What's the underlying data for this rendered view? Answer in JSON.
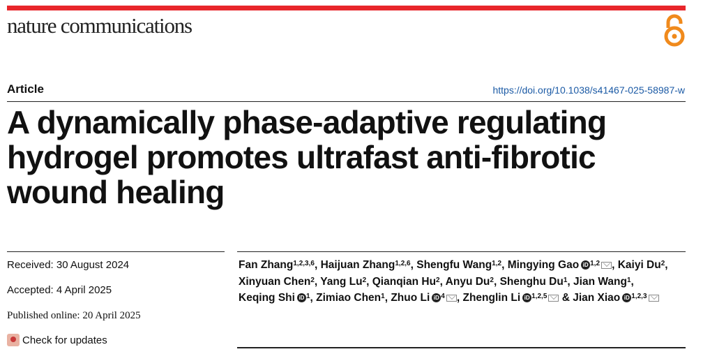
{
  "journal": {
    "name": "nature communications",
    "open_access_icon": "open-access-lock-icon"
  },
  "colors": {
    "accent": "#e8262b",
    "link": "#1b5aa5",
    "oa": "#f08a1c"
  },
  "article": {
    "type_label": "Article",
    "doi": "https://doi.org/10.1038/s41467-025-58987-w",
    "title_lines": [
      "A dynamically phase-adaptive regulating",
      "hydrogel promotes ultrafast anti-fibrotic",
      "wound healing"
    ]
  },
  "dates": {
    "received": "Received: 30 August 2024",
    "accepted": "Accepted: 4 April 2025",
    "published": "Published online: 20 April 2025"
  },
  "check_updates": {
    "label": "Check for updates",
    "icon": "check-for-updates-icon"
  },
  "authors": [
    {
      "name": "Fan Zhang",
      "aff": "1,2,3,6",
      "orcid": false,
      "email": false
    },
    {
      "name": "Haijuan Zhang",
      "aff": "1,2,6",
      "orcid": false,
      "email": false
    },
    {
      "name": "Shengfu Wang",
      "aff": "1,2",
      "orcid": false,
      "email": false
    },
    {
      "name": "Mingying Gao",
      "aff": "1,2",
      "orcid": true,
      "email": true
    },
    {
      "name": "Kaiyi Du",
      "aff": "2",
      "orcid": false,
      "email": false
    },
    {
      "name": "Xinyuan Chen",
      "aff": "2",
      "orcid": false,
      "email": false
    },
    {
      "name": "Yang Lu",
      "aff": "2",
      "orcid": false,
      "email": false
    },
    {
      "name": "Qianqian Hu",
      "aff": "2",
      "orcid": false,
      "email": false
    },
    {
      "name": "Anyu Du",
      "aff": "2",
      "orcid": false,
      "email": false
    },
    {
      "name": "Shenghu Du",
      "aff": "1",
      "orcid": false,
      "email": false
    },
    {
      "name": "Jian Wang",
      "aff": "1",
      "orcid": false,
      "email": false
    },
    {
      "name": "Keqing Shi",
      "aff": "1",
      "orcid": true,
      "email": false
    },
    {
      "name": "Zimiao Chen",
      "aff": "1",
      "orcid": false,
      "email": false
    },
    {
      "name": "Zhuo Li",
      "aff": "4",
      "orcid": true,
      "email": true
    },
    {
      "name": "Zhenglin Li",
      "aff": "1,2,5",
      "orcid": true,
      "email": true
    },
    {
      "name": "Jian Xiao",
      "aff": "1,2,3",
      "orcid": true,
      "email": true
    }
  ],
  "author_separator": ", ",
  "author_final_separator": " & "
}
